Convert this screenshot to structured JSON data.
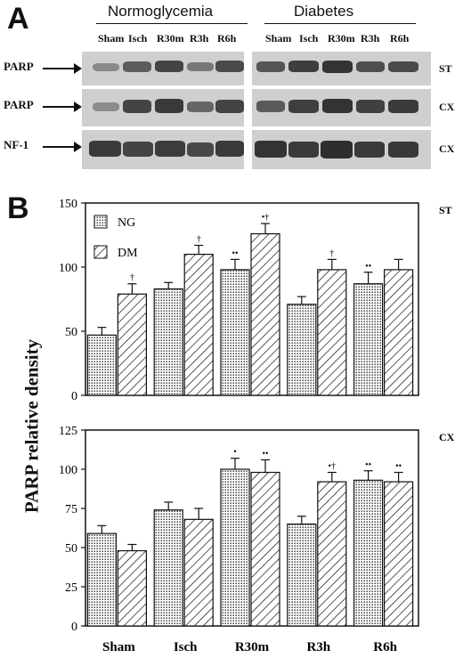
{
  "panel_a": {
    "letter": "A",
    "groups": [
      "Normoglycemia",
      "Diabetes"
    ],
    "lanes": [
      "Sham",
      "Isch",
      "R30m",
      "R3h",
      "R6h"
    ],
    "rows": [
      {
        "label": "PARP",
        "region": "ST"
      },
      {
        "label": "PARP",
        "region": "CX"
      },
      {
        "label": "NF-1",
        "region": "CX"
      }
    ]
  },
  "panel_b": {
    "letter": "B",
    "ylabel": "PARP relative density"
  },
  "chart_data": [
    {
      "type": "bar",
      "region_label": "ST",
      "categories": [
        "Sham",
        "Isch",
        "R30m",
        "R3h",
        "R6h"
      ],
      "ylim": [
        0,
        150
      ],
      "yticks": [
        0,
        50,
        100,
        150
      ],
      "legend_position": "top-left",
      "series": [
        {
          "name": "NG",
          "pattern": "dots",
          "values": [
            47,
            83,
            98,
            71,
            87
          ],
          "errors": [
            6,
            5,
            8,
            6,
            9
          ],
          "markers": [
            "",
            "",
            "••",
            "",
            "••"
          ]
        },
        {
          "name": "DM",
          "pattern": "hatch",
          "values": [
            79,
            110,
            126,
            98,
            98
          ],
          "errors": [
            8,
            7,
            8,
            8,
            8
          ],
          "markers": [
            "†",
            "†",
            "•†",
            "†",
            ""
          ]
        }
      ]
    },
    {
      "type": "bar",
      "region_label": "CX",
      "categories": [
        "Sham",
        "Isch",
        "R30m",
        "R3h",
        "R6h"
      ],
      "ylim": [
        0,
        125
      ],
      "yticks": [
        0,
        25,
        50,
        75,
        100,
        125
      ],
      "series": [
        {
          "name": "NG",
          "pattern": "dots",
          "values": [
            59,
            74,
            100,
            65,
            93
          ],
          "errors": [
            5,
            5,
            7,
            5,
            6
          ],
          "markers": [
            "",
            "",
            "•",
            "",
            "••"
          ]
        },
        {
          "name": "DM",
          "pattern": "hatch",
          "values": [
            48,
            68,
            98,
            92,
            92
          ],
          "errors": [
            4,
            7,
            8,
            6,
            6
          ],
          "markers": [
            "",
            "",
            "••",
            "•†",
            "••"
          ]
        }
      ]
    }
  ]
}
